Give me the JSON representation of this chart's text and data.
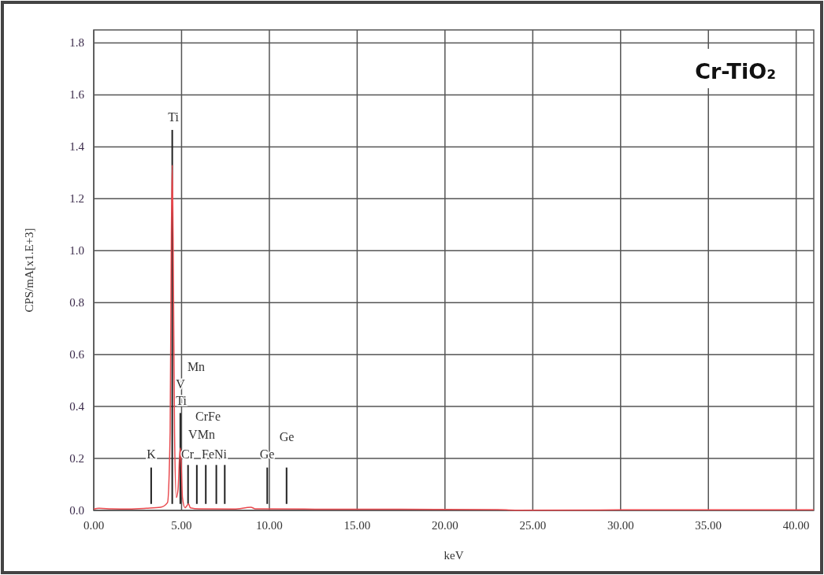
{
  "chart_data": {
    "type": "line",
    "title": "Cr-TiO₂",
    "xlabel": "keV",
    "ylabel": "CPS/mA[x1.E+3]",
    "xlim": [
      0,
      41
    ],
    "ylim": [
      0,
      1.85
    ],
    "xticks": [
      {
        "value": 0,
        "label": "0.00"
      },
      {
        "value": 5,
        "label": "5.00"
      },
      {
        "value": 10,
        "label": "10.00"
      },
      {
        "value": 15,
        "label": "15.00"
      },
      {
        "value": 20,
        "label": "20.00"
      },
      {
        "value": 25,
        "label": "25.00"
      },
      {
        "value": 30,
        "label": "30.00"
      },
      {
        "value": 35,
        "label": "35.00"
      },
      {
        "value": 40,
        "label": "40.00"
      }
    ],
    "yticks": [
      {
        "value": 0,
        "label": "0.0"
      },
      {
        "value": 0.2,
        "label": "0.2"
      },
      {
        "value": 0.4,
        "label": "0.4"
      },
      {
        "value": 0.6,
        "label": "0.6"
      },
      {
        "value": 0.8,
        "label": "0.8"
      },
      {
        "value": 1,
        "label": "1.0"
      },
      {
        "value": 1.2,
        "label": "1.2"
      },
      {
        "value": 1.4,
        "label": "1.4"
      },
      {
        "value": 1.6,
        "label": "1.6"
      },
      {
        "value": 1.8,
        "label": "1.8"
      }
    ],
    "grid": true,
    "series": [
      {
        "color": "#e8474c",
        "x": [
          0,
          0.3,
          1,
          2,
          3,
          3.8,
          4.2,
          4.35,
          4.42,
          4.47,
          4.52,
          4.6,
          4.7,
          4.8,
          4.88,
          4.93,
          4.98,
          5.05,
          5.2,
          5.4,
          5.5,
          6,
          8,
          8.95,
          9.2,
          12,
          20,
          23,
          24,
          30,
          38,
          41
        ],
        "values": [
          0.005,
          0.008,
          0.006,
          0.005,
          0.008,
          0.012,
          0.03,
          0.3,
          1.07,
          1.33,
          1.05,
          0.3,
          0.05,
          0.08,
          0.2,
          0.24,
          0.18,
          0.05,
          0.01,
          0.025,
          0.01,
          0.006,
          0.005,
          0.012,
          0.006,
          0.005,
          0.004,
          0.003,
          0.001,
          0.002,
          0.002,
          0.002
        ]
      },
      {
        "type": "bar",
        "color": "#222222",
        "x": [
          3.27,
          4.47,
          4.93,
          5.37,
          5.87,
          6.38,
          6.98,
          7.46,
          9.88,
          10.98
        ],
        "base": [
          0.025,
          0.025,
          0.025,
          0.025,
          0.025,
          0.025,
          0.025,
          0.025,
          0.025,
          0.025
        ],
        "values": [
          0.14,
          1.44,
          0.35,
          0.15,
          0.15,
          0.15,
          0.15,
          0.15,
          0.14,
          0.14
        ]
      }
    ],
    "annotations": [
      "Ti",
      "Mn",
      "V",
      "Ti",
      "CrFe",
      "VMn",
      "Cr",
      "FeNi",
      "K",
      "Ge",
      "Ge"
    ]
  }
}
